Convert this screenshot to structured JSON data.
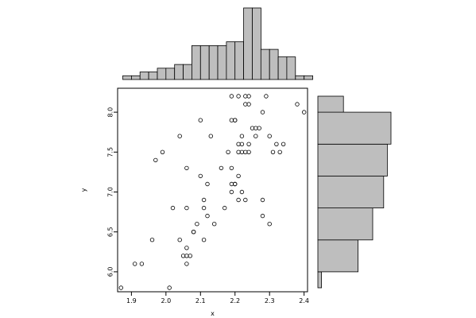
{
  "chart_data": [
    {
      "type": "scatter",
      "panel": "main",
      "xlabel": "x",
      "ylabel": "y",
      "xlim": [
        1.86,
        2.41
      ],
      "ylim": [
        5.75,
        8.3
      ],
      "xticks": [
        1.9,
        2.0,
        2.1,
        2.2,
        2.3,
        2.4
      ],
      "xtick_labels": [
        "1.9",
        "2.0",
        "2.1",
        "2.2",
        "2.3",
        "2.4"
      ],
      "yticks": [
        6.0,
        6.5,
        7.0,
        7.5,
        8.0
      ],
      "ytick_labels": [
        "6.0",
        "6.5",
        "7.0",
        "7.5",
        "8.0"
      ],
      "marker": "open-circle",
      "grid": false,
      "points": [
        [
          1.87,
          5.8
        ],
        [
          1.91,
          6.1
        ],
        [
          1.93,
          6.1
        ],
        [
          1.96,
          6.4
        ],
        [
          1.97,
          7.4
        ],
        [
          1.99,
          7.5
        ],
        [
          2.01,
          5.8
        ],
        [
          2.02,
          6.8
        ],
        [
          2.04,
          6.4
        ],
        [
          2.04,
          7.7
        ],
        [
          2.05,
          6.2
        ],
        [
          2.06,
          6.2
        ],
        [
          2.06,
          6.3
        ],
        [
          2.06,
          6.1
        ],
        [
          2.07,
          6.2
        ],
        [
          2.06,
          6.8
        ],
        [
          2.06,
          7.3
        ],
        [
          2.08,
          6.5
        ],
        [
          2.08,
          6.5
        ],
        [
          2.09,
          6.6
        ],
        [
          2.1,
          7.2
        ],
        [
          2.1,
          7.9
        ],
        [
          2.11,
          6.4
        ],
        [
          2.11,
          6.8
        ],
        [
          2.11,
          6.9
        ],
        [
          2.12,
          7.1
        ],
        [
          2.12,
          6.7
        ],
        [
          2.13,
          7.7
        ],
        [
          2.14,
          6.6
        ],
        [
          2.16,
          7.3
        ],
        [
          2.17,
          6.8
        ],
        [
          2.18,
          7.5
        ],
        [
          2.19,
          7.0
        ],
        [
          2.19,
          7.1
        ],
        [
          2.19,
          7.3
        ],
        [
          2.19,
          7.9
        ],
        [
          2.19,
          8.2
        ],
        [
          2.2,
          7.1
        ],
        [
          2.2,
          7.1
        ],
        [
          2.2,
          7.9
        ],
        [
          2.2,
          7.9
        ],
        [
          2.21,
          7.2
        ],
        [
          2.21,
          7.5
        ],
        [
          2.21,
          7.6
        ],
        [
          2.21,
          8.2
        ],
        [
          2.21,
          6.9
        ],
        [
          2.22,
          7.0
        ],
        [
          2.22,
          7.5
        ],
        [
          2.22,
          7.6
        ],
        [
          2.22,
          7.7
        ],
        [
          2.23,
          8.1
        ],
        [
          2.23,
          8.2
        ],
        [
          2.23,
          7.5
        ],
        [
          2.23,
          6.9
        ],
        [
          2.24,
          7.6
        ],
        [
          2.24,
          8.1
        ],
        [
          2.24,
          8.2
        ],
        [
          2.24,
          7.5
        ],
        [
          2.25,
          7.8
        ],
        [
          2.26,
          7.8
        ],
        [
          2.26,
          7.7
        ],
        [
          2.27,
          7.8
        ],
        [
          2.28,
          8.0
        ],
        [
          2.28,
          6.7
        ],
        [
          2.28,
          6.9
        ],
        [
          2.29,
          8.2
        ],
        [
          2.3,
          7.7
        ],
        [
          2.3,
          6.6
        ],
        [
          2.31,
          7.5
        ],
        [
          2.32,
          7.6
        ],
        [
          2.33,
          7.5
        ],
        [
          2.34,
          7.6
        ],
        [
          2.38,
          8.1
        ],
        [
          2.4,
          8.0
        ]
      ]
    },
    {
      "type": "bar",
      "panel": "top-histogram",
      "orientation": "vertical",
      "xlim": [
        1.86,
        2.41
      ],
      "bin_edges": [
        1.85,
        1.875,
        1.9,
        1.925,
        1.95,
        1.975,
        2.0,
        2.025,
        2.05,
        2.075,
        2.1,
        2.125,
        2.15,
        2.175,
        2.2,
        2.225,
        2.25,
        2.275,
        2.3,
        2.325,
        2.35,
        2.375,
        2.4,
        2.425
      ],
      "values": [
        0,
        1,
        1,
        2,
        2,
        3,
        3,
        4,
        4,
        9,
        9,
        9,
        9,
        10,
        10,
        19,
        19,
        8,
        8,
        6,
        6,
        1,
        1
      ],
      "fill": "#bebebe"
    },
    {
      "type": "bar",
      "panel": "right-histogram",
      "orientation": "horizontal",
      "ylim": [
        5.75,
        8.3
      ],
      "bin_edges": [
        5.8,
        6.0,
        6.4,
        6.8,
        7.2,
        7.6,
        8.0,
        8.2
      ],
      "values": [
        1,
        11,
        15,
        18,
        19,
        20,
        7
      ],
      "fill": "#bebebe"
    }
  ]
}
